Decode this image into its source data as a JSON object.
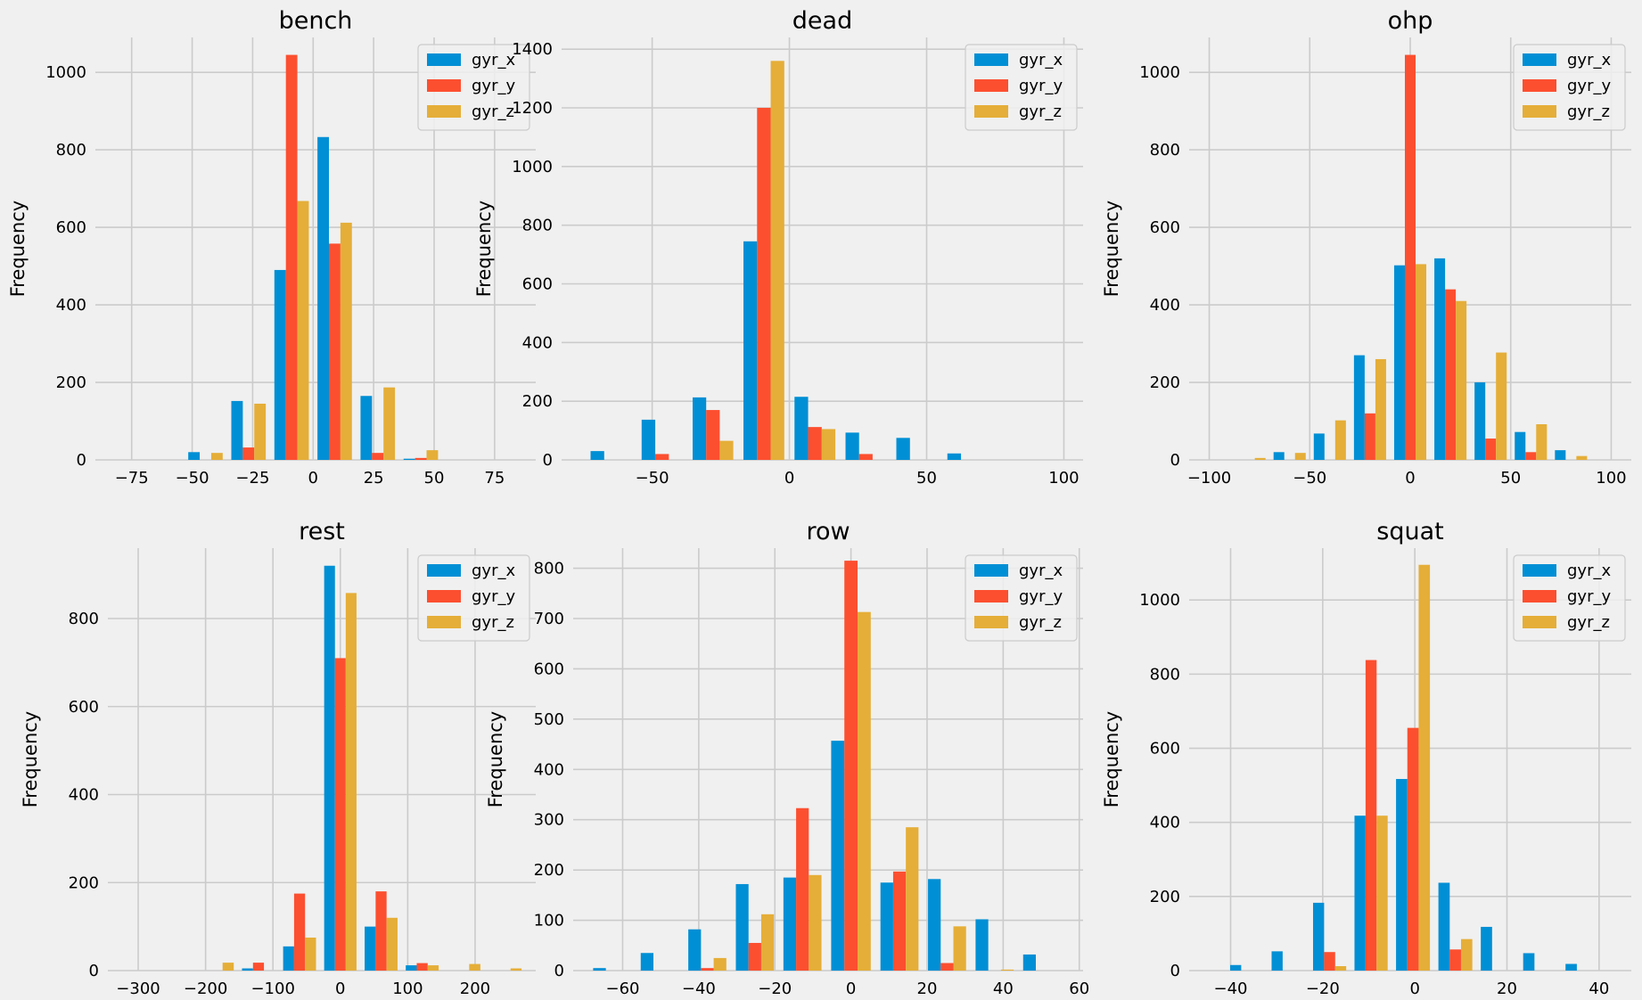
{
  "colors": {
    "gyr_x": "#008fd5",
    "gyr_y": "#fc4f30",
    "gyr_z": "#e5ae38",
    "background": "#f0f0f0",
    "grid": "#cbcbcb"
  },
  "chart_data": [
    {
      "type": "bar",
      "title": "bench",
      "ylabel": "Frequency",
      "xlabel": "",
      "xlim": [
        -90,
        92
      ],
      "ylim": [
        0,
        1090
      ],
      "xticks": [
        -75,
        -50,
        -25,
        0,
        25,
        50,
        75
      ],
      "xtick_labels": [
        "−75",
        "−50",
        "−25",
        "0",
        "25",
        "50",
        "75"
      ],
      "yticks": [
        0,
        200,
        400,
        600,
        800,
        1000
      ],
      "bin_edges": [
        -53.4,
        -35.6,
        -17.8,
        0,
        17.8,
        35.6,
        53.4
      ],
      "series": [
        {
          "name": "gyr_x",
          "values": [
            20,
            152,
            490,
            833,
            165,
            3
          ]
        },
        {
          "name": "gyr_y",
          "values": [
            0,
            32,
            1045,
            558,
            18,
            5
          ]
        },
        {
          "name": "gyr_z",
          "values": [
            18,
            145,
            668,
            612,
            187,
            25
          ]
        }
      ],
      "legend": {
        "location": "top-right",
        "entries": [
          "gyr_x",
          "gyr_y",
          "gyr_z"
        ]
      }
    },
    {
      "type": "bar",
      "title": "dead",
      "ylabel": "Frequency",
      "xlabel": "",
      "xlim": [
        -83,
        107
      ],
      "ylim": [
        0,
        1440
      ],
      "xticks": [
        -50,
        0,
        50,
        100
      ],
      "xtick_labels": [
        "−50",
        "0",
        "50",
        "100"
      ],
      "yticks": [
        0,
        200,
        400,
        600,
        800,
        1000,
        1200,
        1400
      ],
      "bin_edges": [
        -74.3,
        -55.7,
        -37.1,
        -18.6,
        0,
        18.6,
        37.1,
        55.7,
        74.3
      ],
      "series": [
        {
          "name": "gyr_x",
          "values": [
            30,
            137,
            213,
            745,
            215,
            93,
            75,
            22
          ]
        },
        {
          "name": "gyr_y",
          "values": [
            0,
            20,
            170,
            1200,
            112,
            20,
            0,
            0
          ]
        },
        {
          "name": "gyr_z",
          "values": [
            0,
            0,
            65,
            1360,
            105,
            0,
            0,
            0
          ]
        }
      ],
      "legend": {
        "location": "top-right",
        "entries": [
          "gyr_x",
          "gyr_y",
          "gyr_z"
        ]
      }
    },
    {
      "type": "bar",
      "title": "ohp",
      "ylabel": "Frequency",
      "xlabel": "",
      "xlim": [
        -110,
        110
      ],
      "ylim": [
        0,
        1090
      ],
      "xticks": [
        -100,
        -50,
        0,
        50,
        100
      ],
      "xtick_labels": [
        "−100",
        "−50",
        "0",
        "50",
        "100"
      ],
      "yticks": [
        0,
        200,
        400,
        600,
        800,
        1000
      ],
      "bin_edges": [
        -90,
        -70,
        -50,
        -30,
        -10,
        10,
        30,
        50,
        70,
        90
      ],
      "series": [
        {
          "name": "gyr_x",
          "values": [
            0,
            20,
            68,
            270,
            502,
            520,
            200,
            72,
            25
          ]
        },
        {
          "name": "gyr_y",
          "values": [
            0,
            0,
            0,
            120,
            1045,
            440,
            55,
            20,
            0
          ]
        },
        {
          "name": "gyr_z",
          "values": [
            5,
            18,
            102,
            260,
            505,
            410,
            277,
            92,
            10
          ]
        }
      ],
      "legend": {
        "location": "top-right",
        "entries": [
          "gyr_x",
          "gyr_y",
          "gyr_z"
        ]
      }
    },
    {
      "type": "bar",
      "title": "rest",
      "ylabel": "Frequency",
      "xlabel": "",
      "xlim": [
        -345,
        290
      ],
      "ylim": [
        0,
        960
      ],
      "xticks": [
        -300,
        -200,
        -100,
        0,
        100,
        200
      ],
      "xtick_labels": [
        "−300",
        "−200",
        "−100",
        "0",
        "100",
        "200"
      ],
      "yticks": [
        0,
        200,
        400,
        600,
        800
      ],
      "bin_edges": [
        -214,
        -152,
        -91,
        -30,
        30,
        91,
        152,
        214,
        275
      ],
      "series": [
        {
          "name": "gyr_x",
          "values": [
            0,
            5,
            55,
            920,
            100,
            12,
            0,
            0
          ]
        },
        {
          "name": "gyr_y",
          "values": [
            0,
            18,
            175,
            710,
            180,
            17,
            0,
            0
          ]
        },
        {
          "name": "gyr_z",
          "values": [
            18,
            0,
            75,
            858,
            120,
            12,
            15,
            5
          ]
        }
      ],
      "legend": {
        "location": "top-right",
        "entries": [
          "gyr_x",
          "gyr_y",
          "gyr_z"
        ]
      }
    },
    {
      "type": "bar",
      "title": "row",
      "ylabel": "Frequency",
      "xlabel": "",
      "xlim": [
        -73,
        61
      ],
      "ylim": [
        0,
        840
      ],
      "xticks": [
        -60,
        -40,
        -20,
        0,
        20,
        40,
        60
      ],
      "xtick_labels": [
        "−60",
        "−40",
        "−20",
        "0",
        "20",
        "40",
        "60"
      ],
      "yticks": [
        0,
        100,
        200,
        300,
        400,
        500,
        600,
        700,
        800
      ],
      "bin_edges": [
        -69,
        -56.5,
        -44,
        -31.5,
        -19,
        -6.5,
        6.5,
        19,
        31.5,
        44,
        56.5
      ],
      "series": [
        {
          "name": "gyr_x",
          "values": [
            5,
            35,
            82,
            172,
            185,
            457,
            175,
            182,
            102,
            32
          ]
        },
        {
          "name": "gyr_y",
          "values": [
            0,
            0,
            5,
            55,
            323,
            815,
            197,
            15,
            0,
            0
          ]
        },
        {
          "name": "gyr_z",
          "values": [
            0,
            0,
            25,
            112,
            190,
            713,
            285,
            88,
            2,
            0
          ]
        }
      ],
      "legend": {
        "location": "top-right",
        "entries": [
          "gyr_x",
          "gyr_y",
          "gyr_z"
        ]
      }
    },
    {
      "type": "bar",
      "title": "squat",
      "ylabel": "Frequency",
      "xlabel": "",
      "xlim": [
        -49,
        47
      ],
      "ylim": [
        0,
        1140
      ],
      "xticks": [
        -40,
        -20,
        0,
        20,
        40
      ],
      "xtick_labels": [
        "−40",
        "−20",
        "0",
        "20",
        "40"
      ],
      "yticks": [
        0,
        200,
        400,
        600,
        800,
        1000
      ],
      "bin_edges": [
        -41,
        -32,
        -23,
        -14,
        -5,
        4.2,
        13.4,
        22.6,
        31.8,
        41
      ],
      "series": [
        {
          "name": "gyr_x",
          "values": [
            15,
            52,
            183,
            418,
            517,
            237,
            118,
            47,
            18
          ]
        },
        {
          "name": "gyr_y",
          "values": [
            0,
            0,
            50,
            838,
            655,
            57,
            0,
            0,
            0
          ]
        },
        {
          "name": "gyr_z",
          "values": [
            0,
            0,
            12,
            418,
            1095,
            85,
            0,
            0,
            0
          ]
        }
      ],
      "legend": {
        "location": "top-right",
        "entries": [
          "gyr_x",
          "gyr_y",
          "gyr_z"
        ]
      }
    }
  ]
}
